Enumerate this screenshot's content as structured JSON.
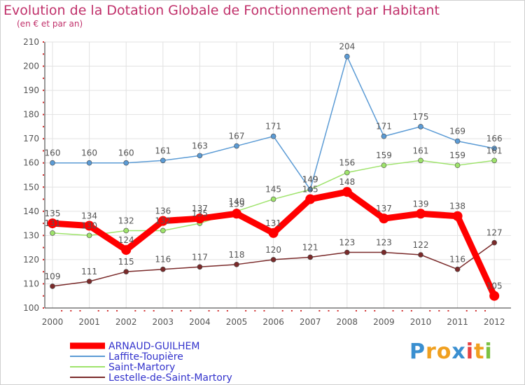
{
  "title": "Evolution de la Dotation Globale de Fonctionnement par Habitant",
  "subtitle": "(en € et par an)",
  "logo": {
    "letters": [
      "P",
      "r",
      "o",
      "x",
      "i",
      "t",
      "i"
    ],
    "colors": [
      "#3a8fd0",
      "#f0a020",
      "#f0a020",
      "#3a8fd0",
      "#e84040",
      "#f0a020",
      "#7bc142"
    ]
  },
  "chart_data": {
    "type": "line",
    "title": "Evolution de la Dotation Globale de Fonctionnement par Habitant",
    "subtitle": "(en € et par an)",
    "xlabel": "",
    "ylabel": "",
    "x": [
      "2000",
      "2001",
      "2002",
      "2003",
      "2004",
      "2005",
      "2006",
      "2007",
      "2008",
      "2009",
      "2010",
      "2011",
      "2012"
    ],
    "ylim": [
      100,
      210
    ],
    "yticks": [
      100,
      110,
      120,
      130,
      140,
      150,
      160,
      170,
      180,
      190,
      200,
      210
    ],
    "grid": true,
    "legend_position": "bottom-left",
    "series": [
      {
        "name": "ARNAUD-GUILHEM",
        "color": "#ff0000",
        "values": [
          135,
          134,
          124,
          136,
          137,
          139,
          131,
          145,
          148,
          137,
          139,
          138,
          105
        ]
      },
      {
        "name": "Laffite-Toupière",
        "color": "#5b9bd5",
        "values": [
          160,
          160,
          160,
          161,
          163,
          167,
          171,
          149,
          204,
          171,
          175,
          169,
          166
        ]
      },
      {
        "name": "Saint-Martory",
        "color": "#9ee36b",
        "values": [
          131,
          130,
          132,
          132,
          135,
          140,
          145,
          149,
          156,
          159,
          161,
          159,
          161
        ]
      },
      {
        "name": "Lestelle-de-Saint-Martory",
        "color": "#7a2a2a",
        "values": [
          109,
          111,
          115,
          116,
          117,
          118,
          120,
          121,
          123,
          123,
          122,
          116,
          127
        ]
      }
    ]
  }
}
